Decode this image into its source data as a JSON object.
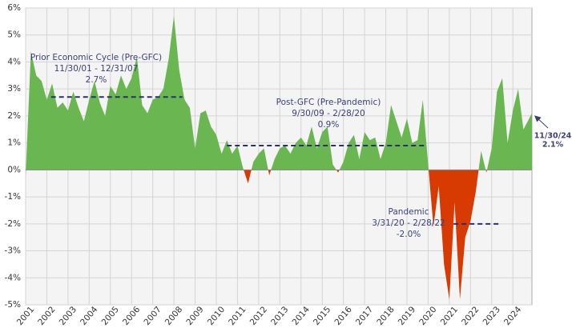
{
  "chart_data": {
    "type": "area",
    "x": [
      2001,
      2001.25,
      2001.5,
      2001.75,
      2002,
      2002.25,
      2002.5,
      2002.75,
      2003,
      2003.25,
      2003.5,
      2003.75,
      2004,
      2004.25,
      2004.5,
      2004.75,
      2005,
      2005.25,
      2005.5,
      2005.75,
      2006,
      2006.25,
      2006.5,
      2006.75,
      2007,
      2007.25,
      2007.5,
      2007.75,
      2008,
      2008.25,
      2008.5,
      2008.75,
      2009,
      2009.25,
      2009.5,
      2009.75,
      2010,
      2010.25,
      2010.5,
      2010.75,
      2011,
      2011.25,
      2011.5,
      2011.75,
      2012,
      2012.25,
      2012.5,
      2012.75,
      2013,
      2013.25,
      2013.5,
      2013.75,
      2014,
      2014.25,
      2014.5,
      2014.75,
      2015,
      2015.25,
      2015.5,
      2015.75,
      2016,
      2016.25,
      2016.5,
      2016.75,
      2017,
      2017.25,
      2017.5,
      2017.75,
      2018,
      2018.25,
      2018.5,
      2018.75,
      2019,
      2019.25,
      2019.5,
      2019.75,
      2020,
      2020.25,
      2020.5,
      2020.75,
      2021,
      2021.25,
      2021.5,
      2021.75,
      2022,
      2022.25,
      2022.5,
      2022.75,
      2023,
      2023.25,
      2023.5,
      2023.75,
      2024,
      2024.25,
      2024.5,
      2024.9
    ],
    "series": [
      {
        "color": "#6ab651",
        "negative_color": "#d83b01",
        "values": [
          -0.2,
          4.4,
          3.5,
          3.3,
          2.6,
          3.2,
          2.3,
          2.5,
          2.2,
          2.9,
          2.3,
          1.8,
          2.6,
          3.3,
          2.5,
          2.0,
          3.1,
          2.8,
          3.5,
          3.0,
          3.4,
          4.2,
          2.4,
          2.1,
          2.6,
          2.7,
          3.0,
          4.1,
          5.7,
          3.7,
          2.6,
          2.3,
          0.8,
          2.1,
          2.2,
          1.6,
          1.3,
          0.6,
          1.1,
          0.6,
          0.9,
          0.1,
          -0.5,
          0.3,
          0.6,
          0.8,
          -0.2,
          0.4,
          0.8,
          0.9,
          0.6,
          1.0,
          1.2,
          0.9,
          1.6,
          0.8,
          1.4,
          1.6,
          0.2,
          -0.1,
          0.3,
          1.0,
          1.3,
          0.4,
          1.4,
          1.1,
          1.2,
          0.4,
          1.0,
          2.4,
          1.8,
          1.2,
          1.9,
          1.0,
          1.1,
          2.6,
          0.2,
          -2.1,
          -0.6,
          -3.5,
          -4.8,
          -1.2,
          -4.8,
          -2.5,
          -1.9,
          -0.8,
          0.7,
          -0.1,
          0.8,
          2.9,
          3.4,
          1.0,
          2.2,
          3.0,
          1.5,
          2.1
        ]
      }
    ],
    "xlim": [
      2001,
      2024.9
    ],
    "xticks": [
      2001,
      2002,
      2003,
      2004,
      2005,
      2006,
      2007,
      2008,
      2009,
      2010,
      2011,
      2012,
      2013,
      2014,
      2015,
      2016,
      2017,
      2018,
      2019,
      2020,
      2021,
      2022,
      2023,
      2024
    ],
    "ylim": [
      -5,
      6
    ],
    "yticks": [
      {
        "value": -5,
        "label": "-5%"
      },
      {
        "value": -4,
        "label": "-4%"
      },
      {
        "value": -3,
        "label": "-3%"
      },
      {
        "value": -2,
        "label": "-2%"
      },
      {
        "value": -1,
        "label": "-1%"
      },
      {
        "value": 0,
        "label": "0%"
      },
      {
        "value": 1,
        "label": "1%"
      },
      {
        "value": 2,
        "label": "2%"
      },
      {
        "value": 3,
        "label": "3%"
      },
      {
        "value": 4,
        "label": "4%"
      },
      {
        "value": 5,
        "label": "5%"
      },
      {
        "value": 6,
        "label": "6%"
      }
    ],
    "grid": true,
    "annotations": [
      {
        "text": [
          "Prior Economic Cycle (Pre-GFC)",
          "11/30/01 - 12/31/07"
        ],
        "value": 2.7,
        "value_label": "2.7%",
        "x_range": [
          2002.2,
          2008.4
        ]
      },
      {
        "text": [
          "Post-GFC (Pre-Pandemic)",
          "9/30/09 - 2/28/20"
        ],
        "value": 0.9,
        "value_label": "0.9%",
        "x_range": [
          2010.5,
          2019.9
        ]
      },
      {
        "text": [
          "Pandemic",
          "3/31/20 - 2/28/22"
        ],
        "value": -2.0,
        "value_label": "-2.0%",
        "x_range": [
          2021.2,
          2023.4
        ]
      }
    ],
    "last_point": {
      "text": "11/30/24",
      "value": 2.1,
      "value_label": "2.1%"
    }
  }
}
